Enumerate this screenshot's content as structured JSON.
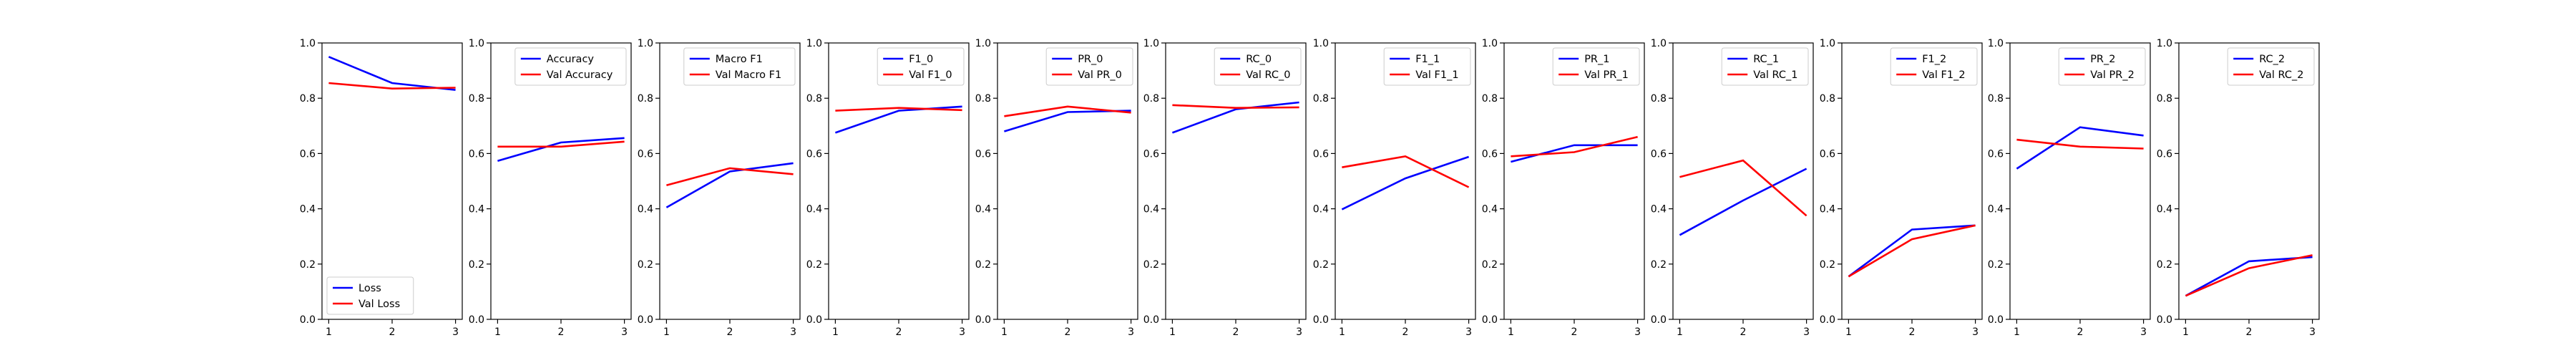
{
  "chart_data": [
    {
      "type": "line",
      "x": [
        1,
        2,
        3
      ],
      "ylim": [
        0,
        1.0
      ],
      "legend_loc": "lower left",
      "series": [
        {
          "name": "Loss",
          "color": "#0000ff",
          "values": [
            0.95,
            0.855,
            0.83
          ]
        },
        {
          "name": "Val Loss",
          "color": "#ff0000",
          "values": [
            0.855,
            0.835,
            0.838
          ]
        }
      ]
    },
    {
      "type": "line",
      "x": [
        1,
        2,
        3
      ],
      "ylim": [
        0,
        1.0
      ],
      "legend_loc": "upper right",
      "series": [
        {
          "name": "Accuracy",
          "color": "#0000ff",
          "values": [
            0.573,
            0.64,
            0.656
          ]
        },
        {
          "name": "Val Accuracy",
          "color": "#ff0000",
          "values": [
            0.625,
            0.625,
            0.643
          ]
        }
      ]
    },
    {
      "type": "line",
      "x": [
        1,
        2,
        3
      ],
      "ylim": [
        0,
        1.0
      ],
      "legend_loc": "upper right",
      "series": [
        {
          "name": "Macro F1",
          "color": "#0000ff",
          "values": [
            0.405,
            0.535,
            0.565
          ]
        },
        {
          "name": "Val Macro F1",
          "color": "#ff0000",
          "values": [
            0.485,
            0.547,
            0.525
          ]
        }
      ]
    },
    {
      "type": "line",
      "x": [
        1,
        2,
        3
      ],
      "ylim": [
        0,
        1.0
      ],
      "legend_loc": "upper right",
      "series": [
        {
          "name": "F1_0",
          "color": "#0000ff",
          "values": [
            0.675,
            0.755,
            0.77
          ]
        },
        {
          "name": "Val F1_0",
          "color": "#ff0000",
          "values": [
            0.755,
            0.765,
            0.757
          ]
        }
      ]
    },
    {
      "type": "line",
      "x": [
        1,
        2,
        3
      ],
      "ylim": [
        0,
        1.0
      ],
      "legend_loc": "upper right",
      "series": [
        {
          "name": "PR_0",
          "color": "#0000ff",
          "values": [
            0.68,
            0.75,
            0.755
          ]
        },
        {
          "name": "Val PR_0",
          "color": "#ff0000",
          "values": [
            0.735,
            0.77,
            0.748
          ]
        }
      ]
    },
    {
      "type": "line",
      "x": [
        1,
        2,
        3
      ],
      "ylim": [
        0,
        1.0
      ],
      "legend_loc": "upper right",
      "series": [
        {
          "name": "RC_0",
          "color": "#0000ff",
          "values": [
            0.675,
            0.76,
            0.785
          ]
        },
        {
          "name": "Val RC_0",
          "color": "#ff0000",
          "values": [
            0.775,
            0.765,
            0.767
          ]
        }
      ]
    },
    {
      "type": "line",
      "x": [
        1,
        2,
        3
      ],
      "ylim": [
        0,
        1.0
      ],
      "legend_loc": "upper right",
      "series": [
        {
          "name": "F1_1",
          "color": "#0000ff",
          "values": [
            0.398,
            0.51,
            0.588
          ]
        },
        {
          "name": "Val F1_1",
          "color": "#ff0000",
          "values": [
            0.55,
            0.59,
            0.478
          ]
        }
      ]
    },
    {
      "type": "line",
      "x": [
        1,
        2,
        3
      ],
      "ylim": [
        0,
        1.0
      ],
      "legend_loc": "upper right",
      "series": [
        {
          "name": "PR_1",
          "color": "#0000ff",
          "values": [
            0.57,
            0.63,
            0.63
          ]
        },
        {
          "name": "Val PR_1",
          "color": "#ff0000",
          "values": [
            0.59,
            0.605,
            0.66
          ]
        }
      ]
    },
    {
      "type": "line",
      "x": [
        1,
        2,
        3
      ],
      "ylim": [
        0,
        1.0
      ],
      "legend_loc": "upper right",
      "series": [
        {
          "name": "RC_1",
          "color": "#0000ff",
          "values": [
            0.305,
            0.43,
            0.545
          ]
        },
        {
          "name": "Val RC_1",
          "color": "#ff0000",
          "values": [
            0.515,
            0.575,
            0.375
          ]
        }
      ]
    },
    {
      "type": "line",
      "x": [
        1,
        2,
        3
      ],
      "ylim": [
        0,
        1.0
      ],
      "legend_loc": "upper right",
      "series": [
        {
          "name": "F1_2",
          "color": "#0000ff",
          "values": [
            0.155,
            0.325,
            0.34
          ]
        },
        {
          "name": "Val F1_2",
          "color": "#ff0000",
          "values": [
            0.155,
            0.29,
            0.34
          ]
        }
      ]
    },
    {
      "type": "line",
      "x": [
        1,
        2,
        3
      ],
      "ylim": [
        0,
        1.0
      ],
      "legend_loc": "upper right",
      "series": [
        {
          "name": "PR_2",
          "color": "#0000ff",
          "values": [
            0.545,
            0.695,
            0.665
          ]
        },
        {
          "name": "Val PR_2",
          "color": "#ff0000",
          "values": [
            0.65,
            0.625,
            0.618
          ]
        }
      ]
    },
    {
      "type": "line",
      "x": [
        1,
        2,
        3
      ],
      "ylim": [
        0,
        1.0
      ],
      "legend_loc": "upper right",
      "series": [
        {
          "name": "RC_2",
          "color": "#0000ff",
          "values": [
            0.085,
            0.21,
            0.225
          ]
        },
        {
          "name": "Val RC_2",
          "color": "#ff0000",
          "values": [
            0.085,
            0.185,
            0.232
          ]
        }
      ]
    }
  ],
  "y_ticks": [
    "0.0",
    "0.2",
    "0.4",
    "0.6",
    "0.8",
    "1.0"
  ],
  "x_ticks": [
    "1",
    "2",
    "3"
  ]
}
